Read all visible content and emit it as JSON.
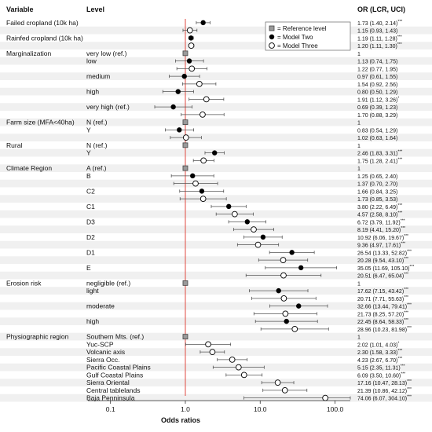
{
  "chart_data": {
    "type": "forest",
    "xscale": "log",
    "xlim": [
      0.05,
      160
    ],
    "xticks": [
      0.1,
      1.0,
      10.0,
      100.0
    ],
    "xtick_labels": [
      "0.1",
      "1.0",
      "10.0",
      "100.0"
    ],
    "xlabel": "Odds ratios",
    "reference_line": 1,
    "colors": {
      "reference_line": "#e0483f",
      "band": "#f0f0f0",
      "whisker": "#555555"
    },
    "headers": {
      "variable": "Variable",
      "level": "Level",
      "or": "OR (LCR, UCI)"
    },
    "legend": [
      {
        "marker": "square",
        "label": "= Reference level"
      },
      {
        "marker": "filled",
        "label": "= Model Two"
      },
      {
        "marker": "open",
        "label": "= Model Three"
      }
    ],
    "groups": [
      {
        "variable": "Failed cropland (10k ha)",
        "rows": [
          {
            "level": "",
            "model": "two",
            "or": 1.73,
            "lo": 1.4,
            "hi": 2.14,
            "text": "1.73 (1.40, 2.14)",
            "sig": "***"
          },
          {
            "level": "",
            "model": "three",
            "or": 1.15,
            "lo": 0.93,
            "hi": 1.43,
            "text": "1.15 (0.93, 1.43)",
            "sig": ""
          }
        ]
      },
      {
        "variable": "Rainfed cropland (10k ha)",
        "rows": [
          {
            "level": "",
            "model": "two",
            "or": 1.19,
            "lo": 1.11,
            "hi": 1.28,
            "text": "1.19 (1.11, 1.28)",
            "sig": "***"
          },
          {
            "level": "",
            "model": "three",
            "or": 1.2,
            "lo": 1.11,
            "hi": 1.3,
            "text": "1.20 (1.11, 1.30)",
            "sig": "***"
          }
        ]
      },
      {
        "variable": "Marginalization",
        "rows": [
          {
            "level": "very low (ref.)",
            "model": "ref",
            "or": 1,
            "text": "1",
            "sig": ""
          },
          {
            "level": "low",
            "model": "two",
            "or": 1.13,
            "lo": 0.74,
            "hi": 1.75,
            "text": "1.13 (0.74, 1.75)",
            "sig": ""
          },
          {
            "level": "",
            "model": "three",
            "or": 1.22,
            "lo": 0.77,
            "hi": 1.95,
            "text": "1.22 (0.77, 1.95)",
            "sig": ""
          },
          {
            "level": "medium",
            "model": "two",
            "or": 0.97,
            "lo": 0.61,
            "hi": 1.55,
            "text": "0.97 (0.61, 1.55)",
            "sig": ""
          },
          {
            "level": "",
            "model": "three",
            "or": 1.54,
            "lo": 0.92,
            "hi": 2.56,
            "text": "1.54 (0.92, 2.56)",
            "sig": ""
          },
          {
            "level": "high",
            "model": "two",
            "or": 0.8,
            "lo": 0.5,
            "hi": 1.29,
            "text": "0.80 (0.50, 1.29)",
            "sig": ""
          },
          {
            "level": "",
            "model": "three",
            "or": 1.91,
            "lo": 1.12,
            "hi": 3.26,
            "text": "1.91 (1.12, 3.26)",
            "sig": "*"
          },
          {
            "level": "very high (ref.)",
            "model": "two",
            "or": 0.69,
            "lo": 0.39,
            "hi": 1.23,
            "text": "0.69 (0.39, 1.23)",
            "sig": ""
          },
          {
            "level": "",
            "model": "three",
            "or": 1.7,
            "lo": 0.88,
            "hi": 3.29,
            "text": "1.70 (0.88, 3.29)",
            "sig": ""
          }
        ]
      },
      {
        "variable": "Farm size (MFA<40ha)",
        "rows": [
          {
            "level": "N (ref.)",
            "model": "ref",
            "or": 1,
            "text": "1",
            "sig": ""
          },
          {
            "level": "Y",
            "model": "two",
            "or": 0.83,
            "lo": 0.54,
            "hi": 1.29,
            "text": "0.83 (0.54, 1.29)",
            "sig": ""
          },
          {
            "level": "",
            "model": "three",
            "or": 1.02,
            "lo": 0.63,
            "hi": 1.64,
            "text": "1.02 (0.63, 1.64)",
            "sig": ""
          }
        ]
      },
      {
        "variable": "Rural",
        "rows": [
          {
            "level": "N (ref.)",
            "model": "ref",
            "or": 1,
            "text": "1",
            "sig": ""
          },
          {
            "level": "Y",
            "model": "two",
            "or": 2.46,
            "lo": 1.83,
            "hi": 3.31,
            "text": "2.46 (1.83, 3.31)",
            "sig": "***"
          },
          {
            "level": "",
            "model": "three",
            "or": 1.75,
            "lo": 1.28,
            "hi": 2.41,
            "text": "1.75 (1.28, 2.41)",
            "sig": "***"
          }
        ]
      },
      {
        "variable": "Climate Region",
        "rows": [
          {
            "level": "A (ref.)",
            "model": "ref",
            "or": 1,
            "text": "1",
            "sig": ""
          },
          {
            "level": "B",
            "model": "two",
            "or": 1.25,
            "lo": 0.65,
            "hi": 2.4,
            "text": "1.25 (0.65, 2.40)",
            "sig": ""
          },
          {
            "level": "",
            "model": "three",
            "or": 1.37,
            "lo": 0.7,
            "hi": 2.7,
            "text": "1.37 (0.70, 2.70)",
            "sig": ""
          },
          {
            "level": "C2",
            "model": "two",
            "or": 1.66,
            "lo": 0.84,
            "hi": 3.25,
            "text": "1.66 (0.84, 3.25)",
            "sig": ""
          },
          {
            "level": "",
            "model": "three",
            "or": 1.73,
            "lo": 0.85,
            "hi": 3.53,
            "text": "1.73 (0.85, 3.53)",
            "sig": ""
          },
          {
            "level": "C1",
            "model": "two",
            "or": 3.8,
            "lo": 2.22,
            "hi": 6.49,
            "text": "3.80 (2.22, 6.49)",
            "sig": "***"
          },
          {
            "level": "",
            "model": "three",
            "or": 4.57,
            "lo": 2.58,
            "hi": 8.1,
            "text": "4.57 (2.58, 8.10)",
            "sig": "***"
          },
          {
            "level": "D3",
            "model": "two",
            "or": 6.72,
            "lo": 3.79,
            "hi": 11.92,
            "text": "6.72 (3.79, 11.92)",
            "sig": "***"
          },
          {
            "level": "",
            "model": "three",
            "or": 8.19,
            "lo": 4.41,
            "hi": 15.2,
            "text": "8.19 (4.41, 15.20)",
            "sig": "***"
          },
          {
            "level": "D2",
            "model": "two",
            "or": 10.92,
            "lo": 6.06,
            "hi": 19.67,
            "text": "10.92 (6.06, 19.67)",
            "sig": "***"
          },
          {
            "level": "",
            "model": "three",
            "or": 9.36,
            "lo": 4.97,
            "hi": 17.61,
            "text": "9.36 (4.97, 17.61)",
            "sig": "***"
          },
          {
            "level": "D1",
            "model": "two",
            "or": 26.54,
            "lo": 13.33,
            "hi": 52.82,
            "text": "26.54 (13.33, 52.82)",
            "sig": "***"
          },
          {
            "level": "",
            "model": "three",
            "or": 20.28,
            "lo": 9.54,
            "hi": 43.1,
            "text": "20.28 (9.54, 43.10)",
            "sig": "***"
          },
          {
            "level": "E",
            "model": "two",
            "or": 35.05,
            "lo": 11.69,
            "hi": 105.1,
            "text": "35.05 (11.69, 105.10)",
            "sig": "***"
          },
          {
            "level": "",
            "model": "three",
            "or": 20.51,
            "lo": 6.47,
            "hi": 65.04,
            "text": "20.51 (6.47, 65.04)",
            "sig": "***"
          }
        ]
      },
      {
        "variable": "Erosion risk",
        "rows": [
          {
            "level": "negligible (ref.)",
            "model": "ref",
            "or": 1,
            "text": "1",
            "sig": ""
          },
          {
            "level": "light",
            "model": "two",
            "or": 17.62,
            "lo": 7.15,
            "hi": 43.42,
            "text": "17.62 (7.15, 43.42)",
            "sig": "***"
          },
          {
            "level": "",
            "model": "three",
            "or": 20.71,
            "lo": 7.71,
            "hi": 55.63,
            "text": "20.71 (7.71, 55.63)",
            "sig": "***"
          },
          {
            "level": "moderate",
            "model": "two",
            "or": 32.66,
            "lo": 13.44,
            "hi": 79.41,
            "text": "32.66 (13.44, 79.41)",
            "sig": "***"
          },
          {
            "level": "",
            "model": "three",
            "or": 21.73,
            "lo": 8.25,
            "hi": 57.2,
            "text": "21.73 (8.25, 57.20)",
            "sig": "***"
          },
          {
            "level": "high",
            "model": "two",
            "or": 22.45,
            "lo": 8.64,
            "hi": 58.33,
            "text": "22.45 (8.64, 58.33)",
            "sig": "***"
          },
          {
            "level": "",
            "model": "three",
            "or": 28.96,
            "lo": 10.23,
            "hi": 81.98,
            "text": "28.96 (10.23, 81.98)",
            "sig": "***"
          }
        ]
      },
      {
        "variable": "Physiographic region",
        "rows": [
          {
            "level": "Southern Mts. (ref.)",
            "model": "ref",
            "or": 1,
            "text": "1",
            "sig": ""
          },
          {
            "level": "Yuc-SCP",
            "model": "three",
            "or": 2.02,
            "lo": 1.01,
            "hi": 4.03,
            "text": "2.02 (1.01, 4.03)",
            "sig": "*"
          },
          {
            "level": "Volcanic axis",
            "model": "three",
            "or": 2.3,
            "lo": 1.58,
            "hi": 3.33,
            "text": "2.30 (1.58, 3.33)",
            "sig": "***"
          },
          {
            "level": "Sierra Occ.",
            "model": "three",
            "or": 4.23,
            "lo": 2.67,
            "hi": 6.7,
            "text": "4.23 (2.67, 6.70)",
            "sig": "***"
          },
          {
            "level": "Pacific Coastal Plains",
            "model": "three",
            "or": 5.15,
            "lo": 2.35,
            "hi": 11.31,
            "text": "5.15 (2.35, 11.31)",
            "sig": "***"
          },
          {
            "level": "Gulf Coastal Plains",
            "model": "three",
            "or": 6.09,
            "lo": 3.5,
            "hi": 10.6,
            "text": "6.09 (3.50, 10.60)",
            "sig": "***"
          },
          {
            "level": "Sierra Oriental",
            "model": "three",
            "or": 17.16,
            "lo": 10.47,
            "hi": 28.13,
            "text": "17.16 (10.47, 28.13)",
            "sig": "***"
          },
          {
            "level": "Central tablelands",
            "model": "three",
            "or": 21.39,
            "lo": 10.86,
            "hi": 42.12,
            "text": "21.39 (10.86, 42.12)",
            "sig": "***"
          },
          {
            "level": "Baja Penninsula",
            "model": "three",
            "or": 74.06,
            "lo": 6.07,
            "hi": 304.1,
            "text": "74.06 (6.07, 304.10)",
            "sig": "***"
          }
        ]
      }
    ]
  }
}
